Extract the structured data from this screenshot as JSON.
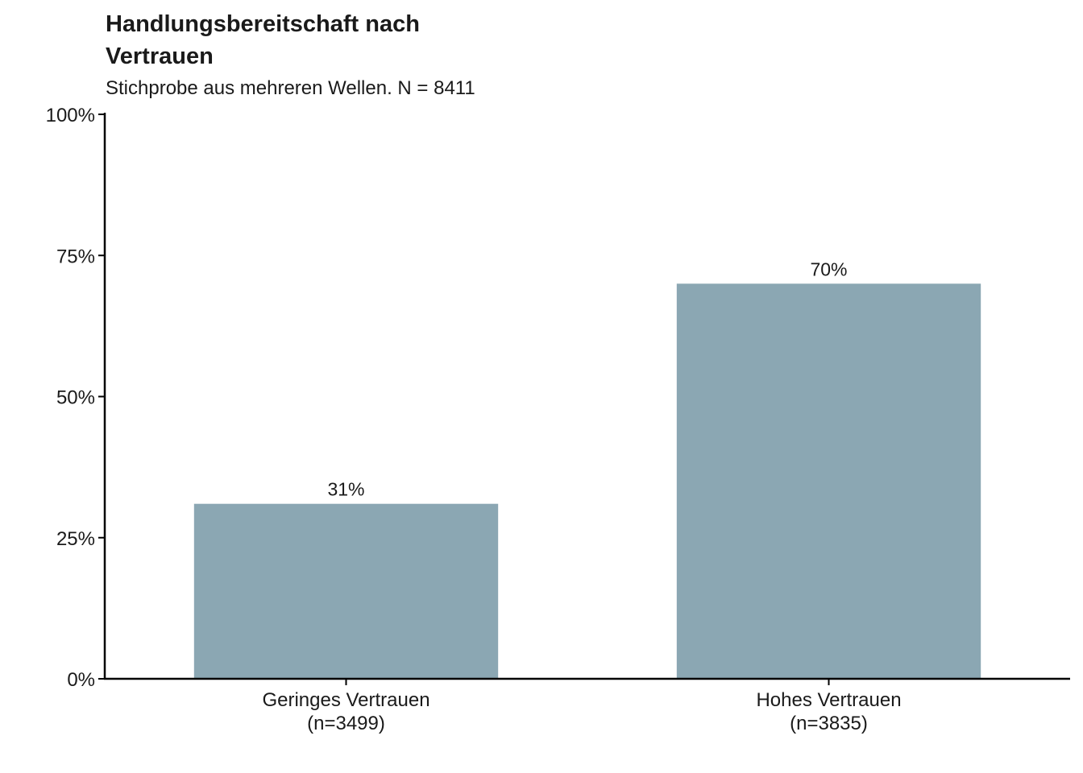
{
  "chart_data": {
    "type": "bar",
    "title": "Handlungsbereitschaft nach Vertrauen",
    "subtitle": "Stichprobe aus mehreren Wellen. N = 8411",
    "categories": [
      "Geringes Vertrauen\n(n=3499)",
      "Hohes Vertrauen\n(n=3835)"
    ],
    "values": [
      31,
      70
    ],
    "value_labels": [
      "31%",
      "70%"
    ],
    "ylim": [
      0,
      100
    ],
    "yticks": [
      0,
      25,
      50,
      75,
      100
    ],
    "ytick_labels": [
      "0%",
      "25%",
      "50%",
      "75%",
      "100%"
    ],
    "xlabel": "",
    "ylabel": "",
    "grid": false,
    "bar_color": "#8ba7b3"
  }
}
